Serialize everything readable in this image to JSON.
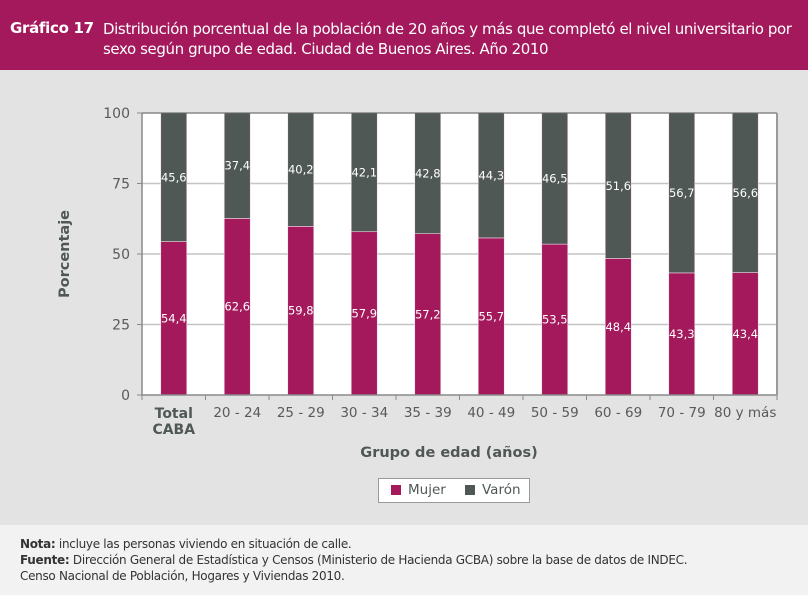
{
  "header": {
    "chart_number": "Gráfico 17",
    "title": "Distribución porcentual de la población de 20 años y más que completó el nivel universitario por sexo según grupo de edad. Ciudad de Buenos Aires. Año 2010"
  },
  "colors": {
    "brand": "#a3195b",
    "mujer": "#a3195b",
    "varon": "#4f5855",
    "plot_bg": "#ffffff",
    "chart_bg": "#e3e3e3"
  },
  "chart_data": {
    "type": "bar",
    "stacked": true,
    "percent_stacked": true,
    "title": "Distribución porcentual de la población de 20 años y más que completó el nivel universitario por sexo según grupo de edad. Ciudad de Buenos Aires. Año 2010",
    "xlabel": "Grupo de edad (años)",
    "ylabel": "Porcentaje",
    "ylim": [
      0,
      100
    ],
    "yticks": [
      "0",
      "25",
      "50",
      "75",
      "100"
    ],
    "ytick_values": [
      0,
      25,
      50,
      75,
      100
    ],
    "grid": true,
    "legend_position": "bottom-center",
    "categories": [
      "Total CABA",
      "20 - 24",
      "25 - 29",
      "30 - 34",
      "35 - 39",
      "40 - 49",
      "50 - 59",
      "60 - 69",
      "70 - 79",
      "80 y más"
    ],
    "series": [
      {
        "name": "Mujer",
        "values": [
          54.4,
          62.6,
          59.8,
          57.9,
          57.2,
          55.7,
          53.5,
          48.4,
          43.3,
          43.4
        ],
        "labels": [
          "54,4",
          "62,6",
          "59,8",
          "57,9",
          "57,2",
          "55,7",
          "53,5",
          "48,4",
          "43,3",
          "43,4"
        ]
      },
      {
        "name": "Varón",
        "values": [
          45.6,
          37.4,
          40.2,
          42.1,
          42.8,
          44.3,
          46.5,
          51.6,
          56.7,
          56.6
        ],
        "labels": [
          "45,6",
          "37,4",
          "40,2",
          "42,1",
          "42,8",
          "44,3",
          "46,5",
          "51,6",
          "56,7",
          "56,6"
        ]
      }
    ]
  },
  "legend": {
    "items": [
      {
        "label": "Mujer"
      },
      {
        "label": "Varón"
      }
    ]
  },
  "footer": {
    "nota_label": "Nota:",
    "nota_text": " incluye las personas viviendo en situación de calle.",
    "fuente_label": "Fuente:",
    "fuente_text": " Dirección General de Estadística y Censos (Ministerio de Hacienda GCBA) sobre la base de datos de INDEC.",
    "fuente_line2": "Censo Nacional de Población, Hogares y Viviendas 2010."
  }
}
